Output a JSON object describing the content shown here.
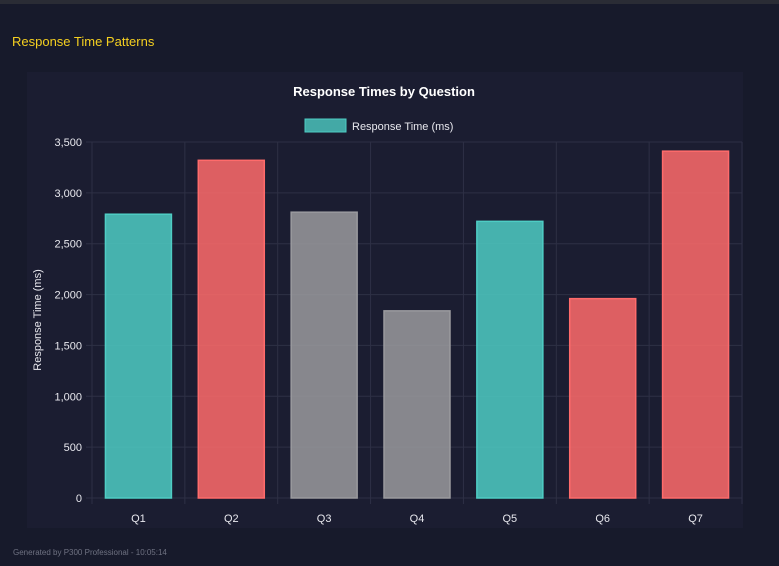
{
  "section_title": "Response Time Patterns",
  "footer": "Generated by P300 Professional - 10:05:14",
  "chart_data": {
    "type": "bar",
    "title": "Response Times by Question",
    "xlabel": "",
    "ylabel": "Response Time (ms)",
    "legend": {
      "label": "Response Time (ms)",
      "position": "top",
      "color": "#4ecdc4"
    },
    "categories": [
      "Q1",
      "Q2",
      "Q3",
      "Q4",
      "Q5",
      "Q6",
      "Q7"
    ],
    "values": [
      2790,
      3320,
      2810,
      1840,
      2720,
      1960,
      3410
    ],
    "colors": [
      "#4ecdc4",
      "#ff6b6b",
      "#9a9a9e",
      "#9a9a9e",
      "#4ecdc4",
      "#ff6b6b",
      "#ff6b6b"
    ],
    "ylim": [
      0,
      3500
    ],
    "yticks": [
      "0",
      "500",
      "1,000",
      "1,500",
      "2,000",
      "2,500",
      "3,000",
      "3,500"
    ],
    "grid": true
  }
}
